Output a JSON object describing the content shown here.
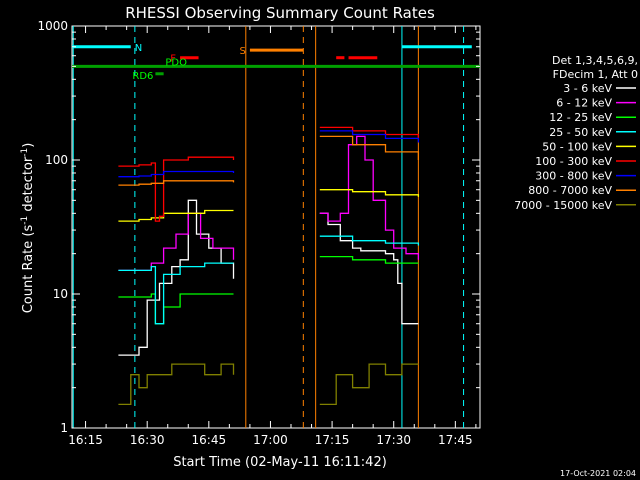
{
  "chart_data": {
    "type": "line",
    "title": "RHESSI Observing Summary Count Rates",
    "xlabel": "Start Time (02-May-11 16:11:42)",
    "ylabel": "Count Rate (s⁻¹ detector⁻¹)",
    "ylabel_base": "Count Rate (s",
    "ylabel_mid": " detector",
    "ylabel_end": ")",
    "ylabel_sup": "-1",
    "xscale": "linear",
    "yscale": "log",
    "xlim": [
      "16:11:42",
      "17:51:00"
    ],
    "ylim": [
      1,
      1000
    ],
    "grid": false,
    "legend_position": "right",
    "x_ticks": [
      "16:15",
      "16:30",
      "16:45",
      "17:00",
      "17:15",
      "17:30",
      "17:45"
    ],
    "y_ticks": [
      "1",
      "10",
      "100",
      "1000"
    ],
    "legend_header": [
      "Det 1,3,4,5,6,9,",
      "FDecim 1, Att 0"
    ],
    "footer": "17-Oct-2021 02:04",
    "series": [
      {
        "name": "3 - 6 keV",
        "color": "#ffffff",
        "segments": [
          {
            "x": [
              "16:23:00",
              "16:26:00",
              "16:28:00",
              "16:30:00",
              "16:33:00",
              "16:36:00",
              "16:38:00",
              "16:40:00",
              "16:42:00",
              "16:45:00",
              "16:48:00",
              "16:51:00"
            ],
            "y": [
              3.5,
              3.5,
              4,
              9,
              12,
              16,
              18,
              50,
              28,
              22,
              17,
              13
            ]
          },
          {
            "x": [
              "17:12:00",
              "17:14:00",
              "17:17:00",
              "17:20:00",
              "17:22:00",
              "17:25:00",
              "17:28:00",
              "17:30:00",
              "17:31:00",
              "17:32:00",
              "17:34:00",
              "17:36:00"
            ],
            "y": [
              40,
              33,
              25,
              22,
              21,
              21,
              20,
              18,
              12,
              6,
              6,
              6
            ]
          }
        ]
      },
      {
        "name": "6 - 12 keV",
        "color": "#ff00ff",
        "segments": [
          {
            "x": [
              "16:23:00",
              "16:28:00",
              "16:31:00",
              "16:34:00",
              "16:37:00",
              "16:40:00",
              "16:43:00",
              "16:46:00",
              "16:51:00"
            ],
            "y": [
              15,
              15,
              17,
              22,
              28,
              40,
              26,
              22,
              18
            ]
          },
          {
            "x": [
              "17:12:00",
              "17:14:00",
              "17:17:00",
              "17:19:00",
              "17:21:00",
              "17:23:00",
              "17:25:00",
              "17:28:00",
              "17:30:00",
              "17:33:00",
              "17:36:00"
            ],
            "y": [
              40,
              35,
              40,
              130,
              150,
              100,
              50,
              30,
              22,
              20,
              18
            ]
          }
        ]
      },
      {
        "name": "12 - 25 keV",
        "color": "#00ff00",
        "segments": [
          {
            "x": [
              "16:23:00",
              "16:28:00",
              "16:31:00",
              "16:32:00",
              "16:34:00",
              "16:38:00",
              "16:44:00",
              "16:51:00"
            ],
            "y": [
              9.5,
              9.5,
              10,
              6,
              8,
              10,
              10,
              10
            ]
          },
          {
            "x": [
              "17:12:00",
              "17:20:00",
              "17:28:00",
              "17:36:00"
            ],
            "y": [
              19,
              18,
              17,
              17
            ]
          }
        ]
      },
      {
        "name": "25 - 50 keV",
        "color": "#00ffff",
        "segments": [
          {
            "x": [
              "16:23:00",
              "16:28:00",
              "16:31:00",
              "16:32:00",
              "16:34:00",
              "16:38:00",
              "16:44:00",
              "16:51:00"
            ],
            "y": [
              15,
              15,
              16,
              6,
              14,
              16,
              17,
              17
            ]
          },
          {
            "x": [
              "17:12:00",
              "17:20:00",
              "17:28:00",
              "17:36:00"
            ],
            "y": [
              27,
              25,
              24,
              23
            ]
          }
        ]
      },
      {
        "name": "50 - 100 keV",
        "color": "#ffff00",
        "segments": [
          {
            "x": [
              "16:23:00",
              "16:28:00",
              "16:31:00",
              "16:34:00",
              "16:44:00",
              "16:51:00"
            ],
            "y": [
              35,
              36,
              37,
              40,
              42,
              42
            ]
          },
          {
            "x": [
              "17:12:00",
              "17:20:00",
              "17:28:00",
              "17:36:00"
            ],
            "y": [
              60,
              58,
              55,
              53
            ]
          }
        ]
      },
      {
        "name": "100 - 300 keV",
        "color": "#ff0000",
        "segments": [
          {
            "x": [
              "16:23:00",
              "16:28:00",
              "16:31:00",
              "16:32:00",
              "16:33:00",
              "16:34:00",
              "16:40:00",
              "16:45:00",
              "16:51:00"
            ],
            "y": [
              90,
              92,
              95,
              35,
              38,
              100,
              105,
              105,
              100
            ]
          },
          {
            "x": [
              "17:12:00",
              "17:20:00",
              "17:28:00",
              "17:36:00"
            ],
            "y": [
              175,
              165,
              155,
              145
            ]
          }
        ]
      },
      {
        "name": "300 - 800 keV",
        "color": "#0000ff",
        "segments": [
          {
            "x": [
              "16:23:00",
              "16:28:00",
              "16:31:00",
              "16:34:00",
              "16:44:00",
              "16:51:00"
            ],
            "y": [
              75,
              76,
              78,
              82,
              82,
              80
            ]
          },
          {
            "x": [
              "17:12:00",
              "17:20:00",
              "17:28:00",
              "17:36:00"
            ],
            "y": [
              165,
              155,
              145,
              135
            ]
          }
        ]
      },
      {
        "name": "800 - 7000 keV",
        "color": "#ff8000",
        "segments": [
          {
            "x": [
              "16:23:00",
              "16:28:00",
              "16:31:00",
              "16:34:00",
              "16:44:00",
              "16:51:00"
            ],
            "y": [
              65,
              66,
              67,
              70,
              70,
              68
            ]
          },
          {
            "x": [
              "17:12:00",
              "17:20:00",
              "17:28:00",
              "17:36:00"
            ],
            "y": [
              150,
              130,
              115,
              100
            ]
          }
        ]
      },
      {
        "name": "7000 - 15000 keV",
        "color": "#808000",
        "segments": [
          {
            "x": [
              "16:23:00",
              "16:26:00",
              "16:28:00",
              "16:30:00",
              "16:33:00",
              "16:36:00",
              "16:40:00",
              "16:44:00",
              "16:48:00",
              "16:51:00"
            ],
            "y": [
              1.5,
              2.5,
              2,
              2.5,
              2.5,
              3,
              3,
              2.5,
              3,
              2.5
            ]
          },
          {
            "x": [
              "17:12:00",
              "17:16:00",
              "17:20:00",
              "17:24:00",
              "17:28:00",
              "17:32:00",
              "17:36:00"
            ],
            "y": [
              1.5,
              2.5,
              2,
              3,
              2.5,
              3,
              3
            ]
          }
        ]
      }
    ],
    "flag_bars": [
      {
        "label": "N",
        "color": "#00ffff",
        "label_color": "#00ffff",
        "y": 700,
        "ranges": [
          [
            "16:11:42",
            "16:26:00"
          ],
          [
            "17:32:00",
            "17:49:00"
          ]
        ]
      },
      {
        "label": "S",
        "color": "#ff8000",
        "label_color": "#ff8000",
        "y": 660,
        "ranges": [
          [
            "16:55:00",
            "17:08:00"
          ]
        ]
      },
      {
        "label": "F",
        "color": "#ff0000",
        "label_color": "#ff0000",
        "y": 580,
        "ranges": [
          [
            "16:38:00",
            "16:42:30"
          ],
          [
            "17:16:00",
            "17:18:00"
          ],
          [
            "17:19:00",
            "17:26:00"
          ]
        ]
      },
      {
        "label": "PDO",
        "color": "#00a000",
        "label_color": "#00ff00",
        "y": 500,
        "ranges": [
          [
            "16:11:42",
            "17:51:00"
          ]
        ]
      },
      {
        "label": "RD6",
        "color": "#00a000",
        "label_color": "#00ff00",
        "y": 440,
        "ranges": [
          [
            "16:32:00",
            "16:34:00"
          ]
        ]
      }
    ],
    "vertical_lines": [
      {
        "x": "16:12:00",
        "color": "#00ffff",
        "style": "solid"
      },
      {
        "x": "16:27:00",
        "color": "#00ffff",
        "style": "dashed"
      },
      {
        "x": "16:54:00",
        "color": "#ff8000",
        "style": "solid"
      },
      {
        "x": "17:08:00",
        "color": "#ff8000",
        "style": "dashed"
      },
      {
        "x": "17:11:00",
        "color": "#ff8000",
        "style": "solid"
      },
      {
        "x": "17:32:00",
        "color": "#00ffff",
        "style": "solid"
      },
      {
        "x": "17:36:00",
        "color": "#ff8000",
        "style": "solid"
      },
      {
        "x": "17:47:00",
        "color": "#00ffff",
        "style": "dashed"
      }
    ]
  }
}
